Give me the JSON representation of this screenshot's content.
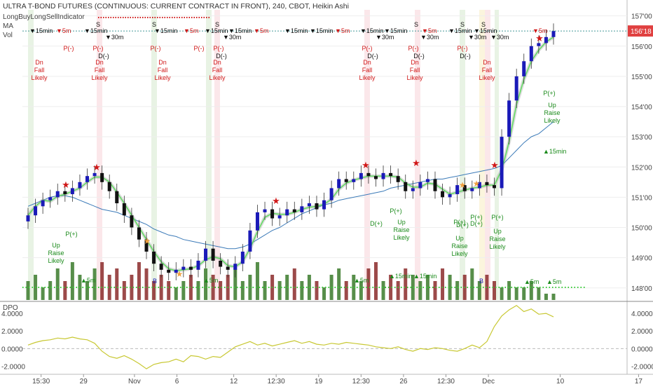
{
  "header": {
    "title": "ULTRA T-BOND FUTURES (CONTINUOUS: CURRENT CONTRACT IN FRONT), 240, CBOT, Heikin Ashi",
    "indicator": "LongBuyLongSellIndicator",
    "ma": "MA",
    "vol": "Vol"
  },
  "dpo_panel": {
    "label": "DPO"
  },
  "last_price_label": "156'18",
  "colors": {
    "up_candle": "#1a1ab8",
    "down_candle": "#111111",
    "volume_up": "#3a7a2a",
    "volume_down": "#8b2a2a",
    "ma_slow": "#3b7ab8",
    "ma_fast_red": "#e04040",
    "ma_fast_green": "#5fdc5f",
    "dpo_line": "#c8c832",
    "sell_text": "#d01818",
    "buy_text": "#1a8a1a",
    "last_price_bg": "#e04040"
  },
  "annotations": {
    "sell_marker": "▼15min",
    "sell_marker_5m": "▼5m",
    "sell_marker_30m": "▼30m",
    "buy_marker": "▲15min",
    "buy_marker_5m": "▲5m",
    "sell_setup": [
      "Dn",
      "Fall",
      "Likely"
    ],
    "buy_setup": [
      "Up",
      "Raise",
      "Likely"
    ],
    "p_minus": "P(-)",
    "d_minus": "D(-)",
    "p_plus": "P(+)",
    "d_plus": "D(+)",
    "s": "S",
    "b": "B"
  },
  "chart_data": {
    "type": "candlestick",
    "price_axis": {
      "ylim": [
        147.6,
        157.2
      ],
      "ticks": [
        "148'00",
        "149'00",
        "150'00",
        "151'00",
        "152'00",
        "153'00",
        "154'00",
        "155'00",
        "156'00",
        "157'00"
      ],
      "tick_values": [
        148,
        149,
        150,
        151,
        152,
        153,
        154,
        155,
        156,
        157
      ]
    },
    "dpo_axis": {
      "ylim": [
        -2.6,
        5.2
      ],
      "ticks": [
        "4.0000",
        "2.0000",
        "0.0000",
        "-2.0000"
      ],
      "tick_values": [
        4,
        2,
        0,
        -2
      ]
    },
    "x_ticks": [
      "15:30",
      "29",
      "Nov",
      "6",
      "12",
      "12:30",
      "19",
      "12:30",
      "26",
      "12:30",
      "Dec",
      "10",
      "17"
    ],
    "x_tick_positions": [
      0.02,
      0.085,
      0.163,
      0.228,
      0.315,
      0.38,
      0.445,
      0.51,
      0.575,
      0.64,
      0.705,
      0.815,
      0.935
    ],
    "close_series": [
      150.4,
      150.7,
      150.9,
      151.0,
      151.2,
      151.1,
      151.3,
      151.5,
      151.7,
      151.8,
      151.5,
      151.2,
      150.8,
      150.4,
      150.0,
      149.6,
      149.2,
      148.8,
      148.6,
      148.5,
      148.6,
      148.7,
      148.6,
      148.9,
      149.3,
      148.9,
      148.7,
      148.6,
      148.8,
      149.2,
      149.9,
      150.5,
      150.6,
      150.3,
      150.4,
      150.6,
      150.5,
      150.7,
      150.8,
      150.6,
      150.9,
      151.3,
      151.6,
      151.5,
      151.6,
      151.8,
      151.7,
      151.6,
      151.8,
      151.7,
      151.5,
      151.2,
      151.3,
      151.5,
      151.6,
      151.2,
      151.0,
      151.1,
      151.4,
      151.2,
      151.3,
      151.5,
      151.4,
      151.3,
      153.0,
      154.2,
      155.0,
      155.5,
      156.0,
      156.1,
      156.3,
      156.5
    ],
    "ma_slow": [
      150.7,
      150.8,
      150.9,
      151.0,
      151.05,
      151.05,
      151.0,
      150.9,
      150.8,
      150.7,
      150.6,
      150.55,
      150.5,
      150.4,
      150.3,
      150.2,
      150.1,
      149.95,
      149.85,
      149.75,
      149.7,
      149.6,
      149.55,
      149.5,
      149.45,
      149.4,
      149.35,
      149.3,
      149.3,
      149.35,
      149.45,
      149.6,
      149.75,
      149.9,
      150.0,
      150.15,
      150.3,
      150.45,
      150.55,
      150.65,
      150.75,
      150.8,
      150.9,
      150.95,
      151.0,
      151.05,
      151.1,
      151.15,
      151.2,
      151.3,
      151.35,
      151.4,
      151.45,
      151.5,
      151.55,
      151.6,
      151.6,
      151.65,
      151.7,
      151.75,
      151.8,
      151.85,
      151.9,
      151.95,
      152.05,
      152.3,
      152.55,
      152.8,
      153.0,
      153.1,
      153.3,
      153.5
    ],
    "dpo_series": [
      0.4,
      0.7,
      0.9,
      1.0,
      1.2,
      1.1,
      1.3,
      1.1,
      1.0,
      0.6,
      -0.3,
      -0.9,
      -1.1,
      -0.8,
      -1.2,
      -1.7,
      -2.3,
      -1.8,
      -1.6,
      -1.5,
      -1.2,
      -1.5,
      -0.8,
      -0.9,
      -1.2,
      -0.9,
      -1.0,
      -0.4,
      0.2,
      0.5,
      0.8,
      0.4,
      0.6,
      0.3,
      0.5,
      0.7,
      0.9,
      0.6,
      0.8,
      0.5,
      0.4,
      0.6,
      0.5,
      0.7,
      0.6,
      0.5,
      0.4,
      0.2,
      0.1,
      0.0,
      0.2,
      -0.1,
      -0.3,
      0.0,
      -0.1,
      0.1,
      0.0,
      -0.2,
      -0.3,
      0.0,
      0.4,
      0.1,
      0.8,
      2.5,
      3.7,
      4.4,
      4.9,
      4.2,
      4.5,
      3.9,
      4.0,
      3.6
    ],
    "volume_series": [
      0.3,
      0.4,
      0.2,
      0.3,
      0.5,
      0.3,
      0.6,
      0.4,
      0.3,
      0.5,
      0.6,
      0.4,
      0.5,
      0.3,
      0.4,
      0.6,
      0.5,
      0.3,
      0.4,
      0.3,
      0.2,
      0.3,
      0.4,
      0.3,
      0.5,
      0.4,
      0.3,
      0.4,
      0.5,
      0.3,
      0.4,
      0.6,
      0.3,
      0.4,
      0.3,
      0.4,
      0.5,
      0.3,
      0.4,
      0.3,
      0.2,
      0.4,
      0.5,
      0.3,
      0.4,
      0.3,
      0.5,
      0.6,
      0.3,
      0.4,
      0.3,
      0.5,
      0.4,
      0.3,
      0.4,
      0.3,
      0.5,
      0.4,
      0.3,
      0.4,
      0.5,
      0.3,
      0.4,
      0.3,
      0.2,
      0.3,
      0.2,
      0.2,
      0.3,
      0.2,
      0.1,
      0.1
    ]
  }
}
